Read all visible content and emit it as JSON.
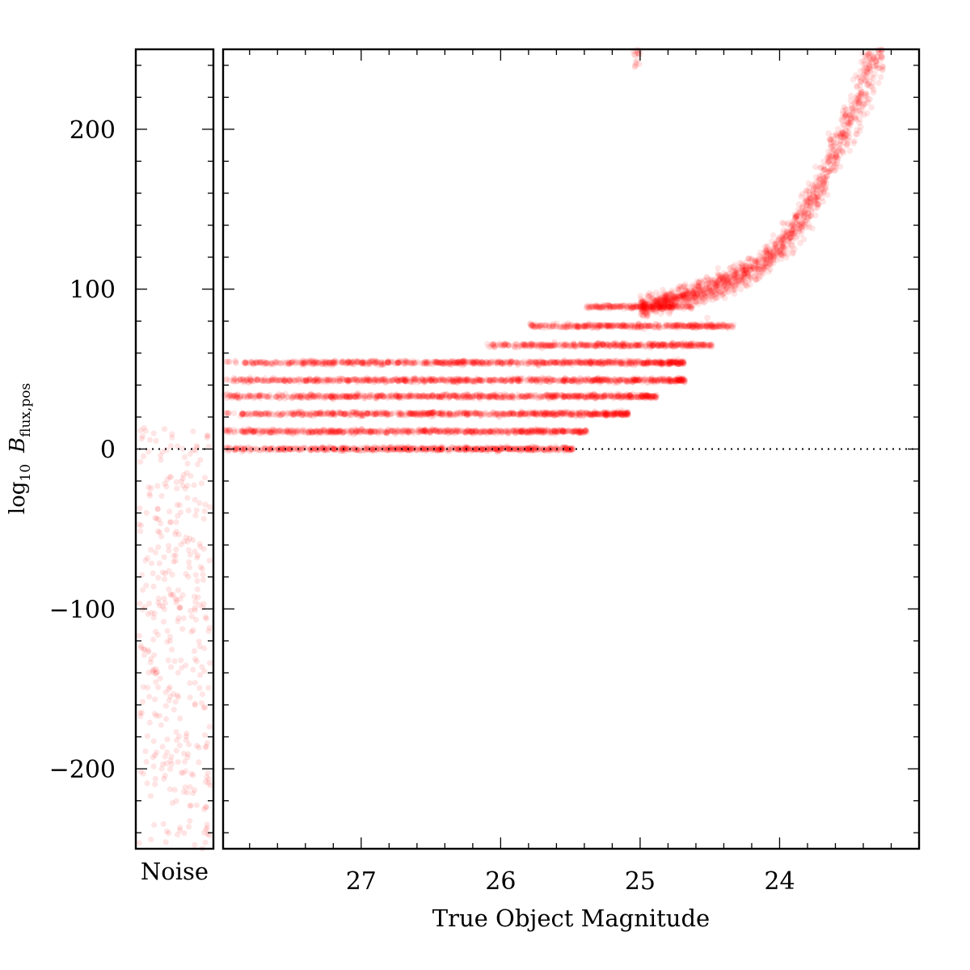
{
  "chart_data": [
    {
      "panel": "main",
      "type": "scatter",
      "xlabel": "True Object Magnitude",
      "ylabel_parts": {
        "log": "log",
        "sub": "10",
        "var": "B",
        "var_sub": "flux,pos"
      },
      "x_reversed": true,
      "xlim": [
        27.99,
        23.0
      ],
      "ylim": [
        -250,
        250
      ],
      "x_ticks": [
        27,
        26,
        25,
        24
      ],
      "x_tick_labels": [
        "27",
        "26",
        "25",
        "24"
      ],
      "y_ticks": [
        200,
        100,
        0,
        -100,
        -200
      ],
      "y_tick_labels": [
        "200",
        "100",
        "0",
        "−100",
        "−200"
      ],
      "reference_line": {
        "y": 0,
        "style": "dotted"
      },
      "marker_color": "#ff0000",
      "marker_alpha": 0.1,
      "series": [
        {
          "level": 0,
          "x_faint": 27.99,
          "x_bright": 25.6
        },
        {
          "level": 11,
          "x_faint": 27.99,
          "x_bright": 25.5
        },
        {
          "level": 22,
          "x_faint": 27.99,
          "x_bright": 25.2
        },
        {
          "level": 33,
          "x_faint": 27.99,
          "x_bright": 25.0
        },
        {
          "level": 43,
          "x_faint": 27.99,
          "x_bright": 24.8
        },
        {
          "level": 54,
          "x_faint": 27.99,
          "x_bright": 24.8
        },
        {
          "level": 65,
          "x_faint": 26.1,
          "x_bright": 24.6
        },
        {
          "level": 77,
          "x_faint": 25.8,
          "x_bright": 24.45
        },
        {
          "level": 89,
          "x_faint": 25.4,
          "x_bright": 24.75
        }
      ],
      "bright_curve": [
        {
          "x": 25.0,
          "y": 88
        },
        {
          "x": 24.5,
          "y": 100
        },
        {
          "x": 24.2,
          "y": 112
        },
        {
          "x": 24.0,
          "y": 126
        },
        {
          "x": 23.8,
          "y": 150
        },
        {
          "x": 23.6,
          "y": 185
        },
        {
          "x": 23.4,
          "y": 225
        },
        {
          "x": 23.25,
          "y": 255
        }
      ]
    },
    {
      "panel": "noise",
      "type": "scatter",
      "xlabel": "Noise",
      "ylim": [
        -250,
        250
      ],
      "y_range_of_points": [
        -250,
        16
      ],
      "marker_color": "#ff0000",
      "marker_alpha": 0.1
    }
  ]
}
